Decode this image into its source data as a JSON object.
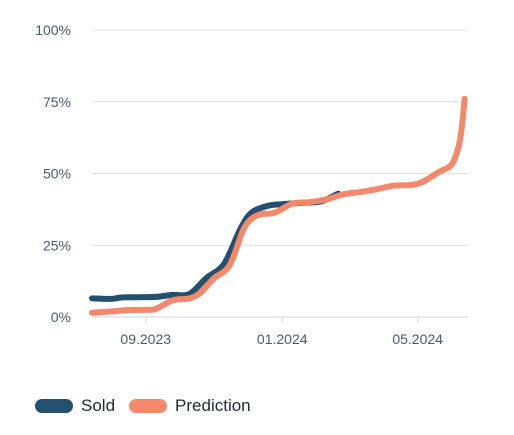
{
  "colors": {
    "sold": "#24506f",
    "prediction": "#f4886a",
    "grid": "#dfe3e8",
    "axis_text": "#4a5a6a"
  },
  "legend": {
    "sold_label": "Sold",
    "prediction_label": "Prediction"
  },
  "chart_data": {
    "type": "line",
    "title": "",
    "xlabel": "",
    "ylabel": "",
    "ylim": [
      0,
      100
    ],
    "xlim": [
      "2023-07-15",
      "2024-06-15"
    ],
    "y_ticks": [
      {
        "value": 0,
        "label": "0%"
      },
      {
        "value": 25,
        "label": "25%"
      },
      {
        "value": 50,
        "label": "50%"
      },
      {
        "value": 75,
        "label": "75%"
      },
      {
        "value": 100,
        "label": "100%"
      }
    ],
    "x_ticks": [
      {
        "value": "2023-09-01",
        "label": "09.2023"
      },
      {
        "value": "2024-01-01",
        "label": "01.2024"
      },
      {
        "value": "2024-05-01",
        "label": "05.2024"
      }
    ],
    "grid": true,
    "legend_position": "bottom-left",
    "series": [
      {
        "name": "Sold",
        "color": "#24506f",
        "points": [
          [
            "2023-07-15",
            6.5
          ],
          [
            "2023-08-01",
            6.3
          ],
          [
            "2023-08-10",
            6.8
          ],
          [
            "2023-08-25",
            6.9
          ],
          [
            "2023-09-10",
            7.0
          ],
          [
            "2023-09-25",
            7.7
          ],
          [
            "2023-10-10",
            8.0
          ],
          [
            "2023-10-25",
            13.5
          ],
          [
            "2023-11-10",
            18.5
          ],
          [
            "2023-11-25",
            31.0
          ],
          [
            "2023-12-05",
            36.5
          ],
          [
            "2023-12-20",
            38.8
          ],
          [
            "2024-01-01",
            39.3
          ],
          [
            "2024-01-20",
            39.8
          ],
          [
            "2024-02-05",
            40.3
          ],
          [
            "2024-02-20",
            43.0
          ]
        ]
      },
      {
        "name": "Prediction",
        "color": "#f4886a",
        "points": [
          [
            "2023-07-15",
            1.5
          ],
          [
            "2023-08-01",
            1.9
          ],
          [
            "2023-08-15",
            2.4
          ],
          [
            "2023-09-01",
            2.5
          ],
          [
            "2023-09-10",
            2.8
          ],
          [
            "2023-09-25",
            5.8
          ],
          [
            "2023-10-10",
            6.5
          ],
          [
            "2023-10-20",
            8.5
          ],
          [
            "2023-11-01",
            13.5
          ],
          [
            "2023-11-15",
            18.0
          ],
          [
            "2023-11-28",
            31.0
          ],
          [
            "2023-12-10",
            35.5
          ],
          [
            "2023-12-25",
            36.3
          ],
          [
            "2024-01-10",
            39.5
          ],
          [
            "2024-01-25",
            40.0
          ],
          [
            "2024-02-10",
            41.0
          ],
          [
            "2024-02-25",
            42.8
          ],
          [
            "2024-03-10",
            43.5
          ],
          [
            "2024-03-25",
            44.5
          ],
          [
            "2024-04-10",
            45.8
          ],
          [
            "2024-04-25",
            46.0
          ],
          [
            "2024-05-05",
            47.0
          ],
          [
            "2024-05-20",
            50.5
          ],
          [
            "2024-06-01",
            53.5
          ],
          [
            "2024-06-08",
            62.0
          ],
          [
            "2024-06-12",
            76.0
          ]
        ]
      }
    ]
  }
}
